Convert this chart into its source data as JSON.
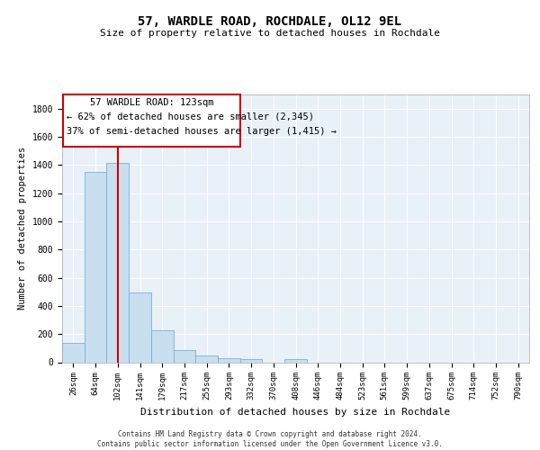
{
  "title1": "57, WARDLE ROAD, ROCHDALE, OL12 9EL",
  "title2": "Size of property relative to detached houses in Rochdale",
  "xlabel": "Distribution of detached houses by size in Rochdale",
  "ylabel": "Number of detached properties",
  "bin_labels": [
    "26sqm",
    "64sqm",
    "102sqm",
    "141sqm",
    "179sqm",
    "217sqm",
    "255sqm",
    "293sqm",
    "332sqm",
    "370sqm",
    "408sqm",
    "446sqm",
    "484sqm",
    "523sqm",
    "561sqm",
    "599sqm",
    "637sqm",
    "675sqm",
    "714sqm",
    "752sqm",
    "790sqm"
  ],
  "bar_heights": [
    140,
    1350,
    1415,
    495,
    225,
    85,
    50,
    30,
    20,
    0,
    20,
    0,
    0,
    0,
    0,
    0,
    0,
    0,
    0,
    0,
    0
  ],
  "bar_color": "#c8dff0",
  "bar_edge_color": "#7bafd4",
  "bg_color": "#e8f0f8",
  "grid_color": "#ffffff",
  "vline_color": "#cc0000",
  "ann_line1": "57 WARDLE ROAD: 123sqm",
  "ann_line2": "← 62% of detached houses are smaller (2,345)",
  "ann_line3": "37% of semi-detached houses are larger (1,415) →",
  "footnote": "Contains HM Land Registry data © Crown copyright and database right 2024.\nContains public sector information licensed under the Open Government Licence v3.0.",
  "ylim": [
    0,
    1900
  ],
  "yticks": [
    0,
    200,
    400,
    600,
    800,
    1000,
    1200,
    1400,
    1600,
    1800
  ]
}
